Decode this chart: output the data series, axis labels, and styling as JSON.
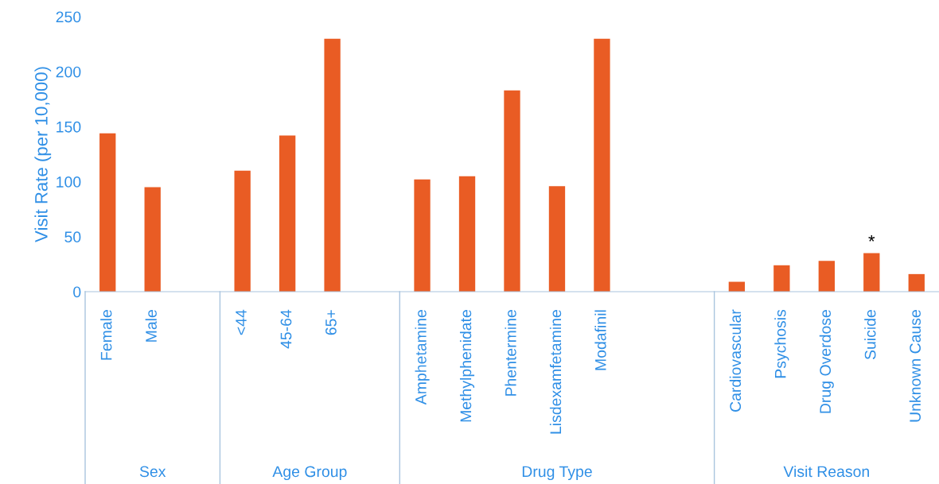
{
  "chart_data": {
    "type": "bar",
    "ylabel": "Visit Rate (per 10,000)",
    "categories": [
      "Female",
      "Male",
      null,
      "<44",
      "45-64",
      "65+",
      null,
      "Amphetamine",
      "Methylphenidate",
      "Phentermine",
      "Lisdexamfetamine",
      "Modafinil",
      null,
      null,
      "Cardiovascular",
      "Psychosis",
      "Drug Overdose",
      "Suicide",
      "Unknown Cause"
    ],
    "values": [
      144,
      95,
      null,
      110,
      142,
      230,
      null,
      102,
      105,
      183,
      96,
      230,
      null,
      null,
      9,
      24,
      28,
      35,
      16
    ],
    "color": "#e95c24",
    "ylim": [
      0,
      250
    ],
    "yticks": [
      0,
      50,
      100,
      150,
      200,
      250
    ],
    "annotations": [
      {
        "text": "*",
        "x": "Suicide",
        "y": 35
      },
      "Sex",
      "Age Group",
      "Drug Type",
      "Visit Reason"
    ]
  }
}
